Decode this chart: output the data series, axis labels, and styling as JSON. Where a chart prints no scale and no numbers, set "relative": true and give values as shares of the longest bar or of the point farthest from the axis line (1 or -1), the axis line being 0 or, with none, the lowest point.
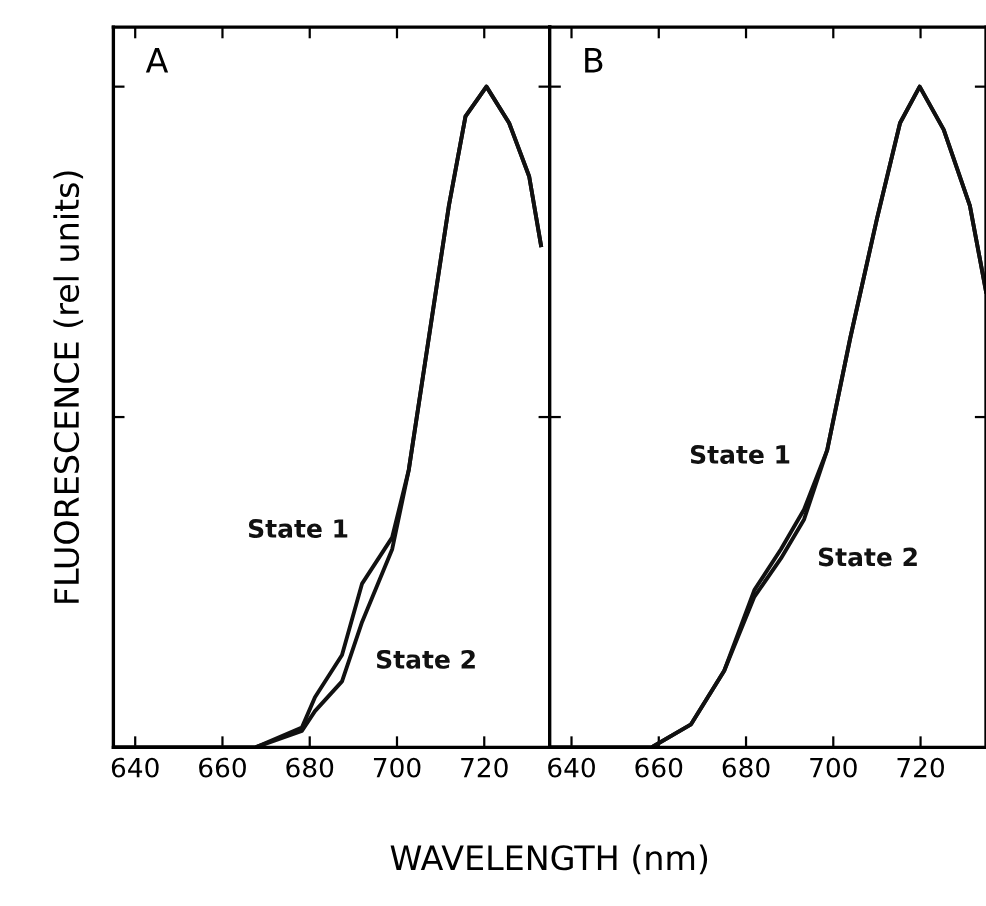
{
  "chart_data": [
    {
      "type": "line",
      "relative": true,
      "ylabel": "FLUORESCENCE (rel units)",
      "xlabel": "WAVELENGTH (nm)",
      "annotations": [
        "A"
      ],
      "xlim": [
        635,
        735
      ],
      "xticks": [
        640,
        660,
        680,
        700,
        720
      ],
      "tick_labels": "x",
      "grid": false,
      "legend": false,
      "series": [
        {
          "name": "State 1",
          "color": "#111111",
          "x": [
            635,
            667.5,
            678.2,
            681.2,
            687.4,
            692,
            698.9,
            702.7,
            707.3,
            711.9,
            715.7,
            720.5,
            725.7,
            730.3,
            733
          ],
          "values": [
            0,
            0,
            0.03,
            0.076,
            0.14,
            0.248,
            0.318,
            0.42,
            0.62,
            0.82,
            0.955,
            1.0,
            0.945,
            0.864,
            0.76
          ]
        },
        {
          "name": "State 2",
          "color": "#111111",
          "x": [
            635,
            667.5,
            678.2,
            681.2,
            687.4,
            692,
            698.9,
            702.7,
            707.3,
            711.9,
            715.7,
            720.5,
            725.7,
            730.3,
            733
          ],
          "values": [
            0,
            0,
            0.025,
            0.055,
            0.1,
            0.19,
            0.3,
            0.42,
            0.62,
            0.82,
            0.955,
            1.0,
            0.945,
            0.864,
            0.76
          ]
        }
      ]
    },
    {
      "type": "line",
      "relative": true,
      "annotations": [
        "B"
      ],
      "xlim": [
        635,
        735
      ],
      "xticks": [
        640,
        660,
        680,
        700,
        720
      ],
      "tick_labels": "x",
      "grid": false,
      "legend": false,
      "series": [
        {
          "name": "State 1",
          "color": "#111111",
          "x": [
            635,
            658.3,
            667.4,
            675,
            681.9,
            688,
            693.3,
            698.6,
            703.9,
            710,
            715.3,
            719.8,
            725.3,
            731.3,
            735
          ],
          "values": [
            0,
            0,
            0.035,
            0.116,
            0.238,
            0.3,
            0.36,
            0.45,
            0.62,
            0.8,
            0.945,
            1.0,
            0.935,
            0.82,
            0.69
          ]
        },
        {
          "name": "State 2",
          "color": "#111111",
          "x": [
            635,
            658.3,
            667.4,
            675,
            681.9,
            688,
            693.3,
            698.6,
            703.9,
            710,
            715.3,
            719.8,
            725.3,
            731.3,
            735
          ],
          "values": [
            0,
            0,
            0.035,
            0.116,
            0.228,
            0.286,
            0.345,
            0.45,
            0.62,
            0.8,
            0.945,
            1.0,
            0.935,
            0.82,
            0.69
          ]
        }
      ]
    }
  ]
}
